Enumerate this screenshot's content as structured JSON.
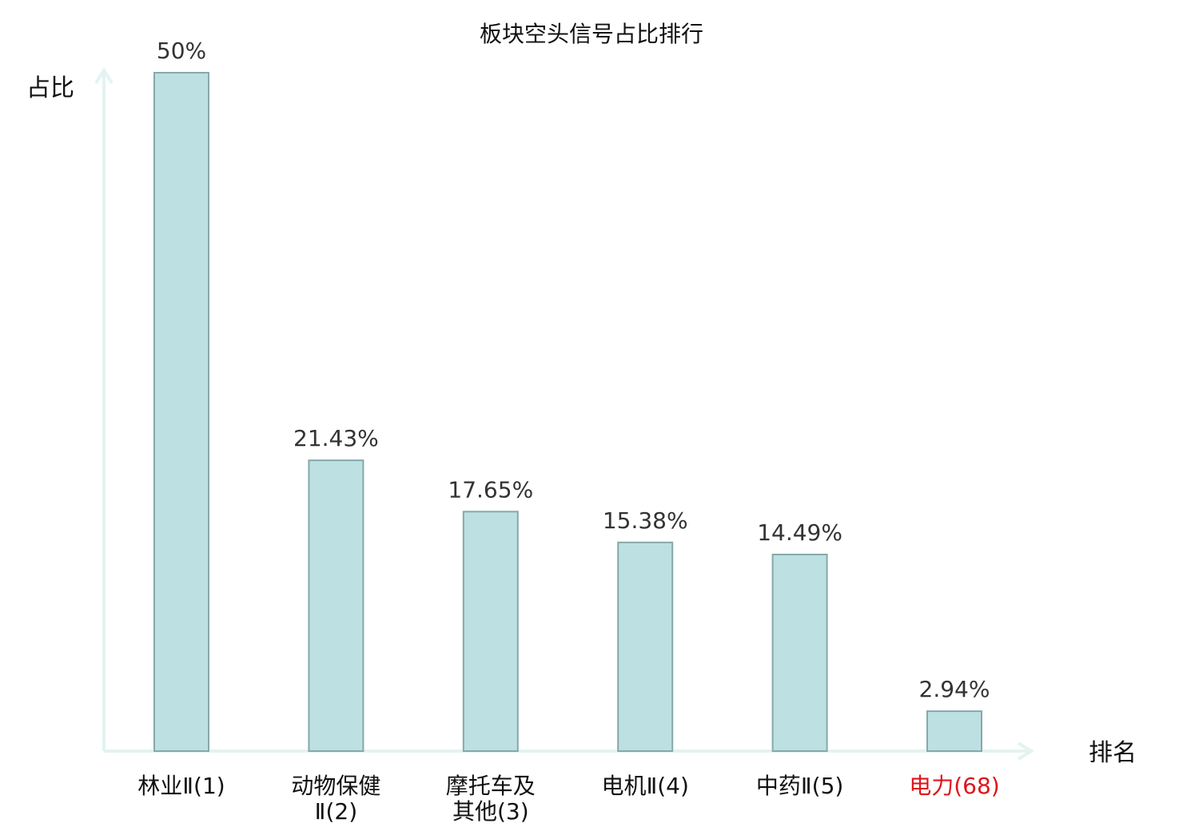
{
  "chart_data": {
    "type": "bar",
    "title": "板块空头信号占比排行",
    "ylabel": "占比",
    "xlabel": "排名",
    "categories": [
      {
        "lines": [
          "林业Ⅱ(1)"
        ],
        "highlight": false
      },
      {
        "lines": [
          "动物保健",
          "Ⅱ(2)"
        ],
        "highlight": false
      },
      {
        "lines": [
          "摩托车及",
          "其他(3)"
        ],
        "highlight": false
      },
      {
        "lines": [
          "电机Ⅱ(4)"
        ],
        "highlight": false
      },
      {
        "lines": [
          "中药Ⅱ(5)"
        ],
        "highlight": false
      },
      {
        "lines": [
          "电力(68)"
        ],
        "highlight": true
      }
    ],
    "values": [
      50,
      21.43,
      17.65,
      15.38,
      14.49,
      2.94
    ],
    "value_labels": [
      "50%",
      "21.43%",
      "17.65%",
      "15.38%",
      "14.49%",
      "2.94%"
    ],
    "ylim": [
      0,
      50
    ],
    "grid": false,
    "legend": "none",
    "colors": {
      "bar_fill": "#bde0e3",
      "bar_stroke": "#86a9ab",
      "axis": "#e3f3f1",
      "text": "#111111",
      "value_text": "#333333",
      "highlight_text": "#e0131a"
    }
  }
}
